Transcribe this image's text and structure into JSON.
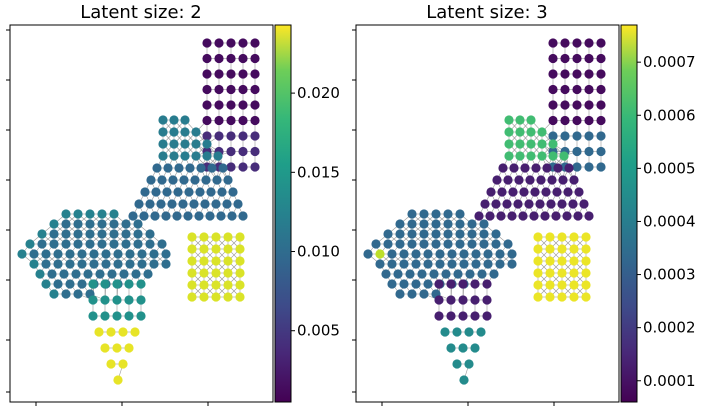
{
  "chart_data": [
    {
      "type": "scatter",
      "title": "Latent size: 2",
      "xlabel": "",
      "ylabel": "",
      "colormap": "viridis",
      "colorbar": {
        "range": [
          0.0005,
          0.0243
        ],
        "ticks": [
          0.005,
          0.01,
          0.015,
          0.02
        ],
        "tick_labels": [
          "0.005",
          "0.010",
          "0.015",
          "0.020"
        ]
      },
      "node_values": {
        "upper_right_block": 0.0012,
        "upper_right_block_lower_rows": 0.0035,
        "diagonal_band_top": 0.0105,
        "diagonal_band_bottom": 0.0085,
        "left_wing": 0.009,
        "left_wing_edges": 0.011,
        "lower_triangle_top": 0.0125,
        "lower_triangle_tip": 0.0235,
        "right_lower_block": 0.023
      }
    },
    {
      "type": "scatter",
      "title": "Latent size: 3",
      "xlabel": "",
      "ylabel": "",
      "colormap": "viridis",
      "colorbar": {
        "range": [
          6e-05,
          0.00077
        ],
        "ticks": [
          0.0001,
          0.0002,
          0.0003,
          0.0004,
          0.0005,
          0.0006,
          0.0007
        ],
        "tick_labels": [
          "0.0001",
          "0.0002",
          "0.0003",
          "0.0004",
          "0.0005",
          "0.0006",
          "0.0007"
        ]
      },
      "node_values": {
        "upper_right_block": 8e-05,
        "diagonal_band_top": 0.00055,
        "diagonal_band_bottom": 0.00012,
        "left_wing": 0.0003,
        "left_wing_tip": 0.0007,
        "lower_triangle_top": 0.00012,
        "lower_triangle_tip": 0.0004,
        "right_lower_block": 0.00075
      }
    }
  ]
}
